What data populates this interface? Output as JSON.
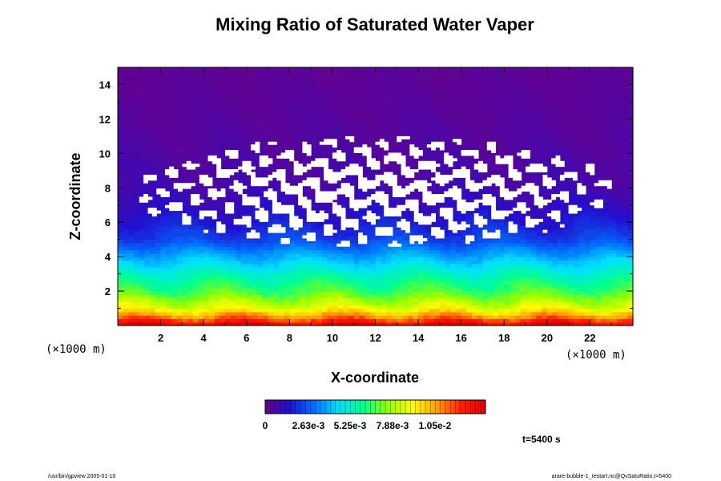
{
  "chart_data": {
    "type": "heatmap",
    "title": "Mixing Ratio of Saturated Water Vaper",
    "xlabel": "X-coordinate",
    "ylabel": "Z-coordinate",
    "x_unit": "(×1000 m)",
    "y_unit": "(×1000 m)",
    "xlim": [
      0,
      24
    ],
    "ylim": [
      0,
      15
    ],
    "x_ticks": [
      "2",
      "4",
      "6",
      "8",
      "10",
      "12",
      "14",
      "16",
      "18",
      "20",
      "22"
    ],
    "y_ticks": [
      "2",
      "4",
      "6",
      "8",
      "10",
      "12",
      "14"
    ],
    "colorbar": {
      "min": 0,
      "max": 0.0105,
      "tick_labels": [
        "0",
        "2.63e-3",
        "5.25e-3",
        "7.88e-3",
        "1.05e-2"
      ],
      "colors": [
        "#6a008a",
        "#2010d0",
        "#0070ff",
        "#00e0ff",
        "#00ff90",
        "#90ff00",
        "#ffff00",
        "#ffa000",
        "#ff2000",
        "#e00000"
      ]
    },
    "profile_z": [
      0,
      0.5,
      1,
      2,
      3,
      3.5,
      4,
      4.5,
      5,
      6,
      7,
      8,
      10,
      12,
      15
    ],
    "profile_value": [
      0.0105,
      0.0085,
      0.0068,
      0.0052,
      0.0042,
      0.0036,
      0.003,
      0.0024,
      0.0018,
      0.0013,
      0.0009,
      0.0006,
      0.0004,
      0.0003,
      0.0002
    ],
    "unsaturated_region": {
      "x_range": [
        1,
        23
      ],
      "z_range": [
        4.6,
        11
      ]
    }
  },
  "annotations": {
    "time": "t=5400 s",
    "footer_left": "/usr/bin/gpview 2005-01-10",
    "footer_right": "arare-bubble-1_restart.nc@QvSatuRatio,t=5400"
  }
}
